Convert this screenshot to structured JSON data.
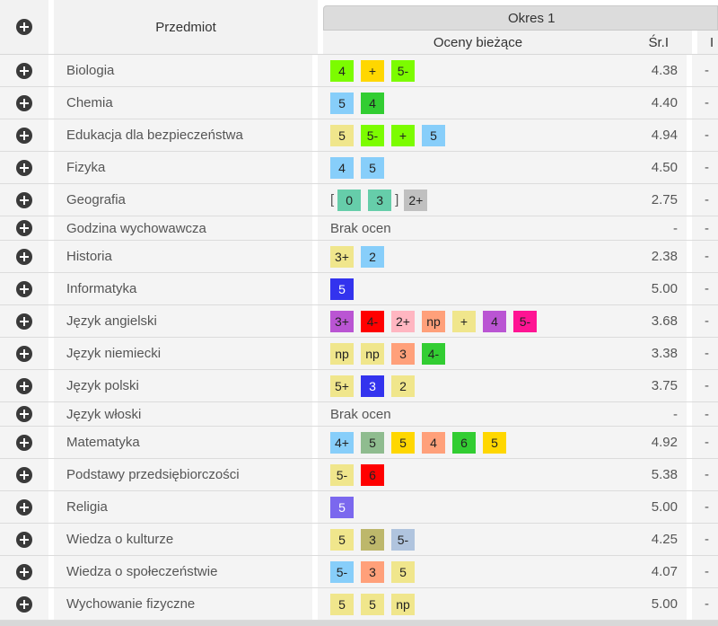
{
  "header": {
    "subject": "Przedmiot",
    "period": "Okres 1",
    "grades": "Oceny bieżące",
    "avg": "Śr.I",
    "last": "I"
  },
  "colors": {
    "lime": "#7cfc00",
    "gold": "#ffd700",
    "skyblue": "#87cefa",
    "green": "#32cd32",
    "khaki": "#f0e68c",
    "aquamarine": "#66cdaa",
    "silver": "#c0c0c0",
    "blue": "#3333ee",
    "orchid": "#ba55d3",
    "red": "#ff0000",
    "pink": "#ffb6c1",
    "salmon": "#ffa07a",
    "magenta": "#ff1493",
    "olive": "#bdb76b",
    "steel": "#b0c4de",
    "slate": "#7b68ee",
    "sage": "#8fbc8f"
  },
  "rows": [
    {
      "subject": "Biologia",
      "grades": [
        {
          "v": "4",
          "c": "#7cfc00"
        },
        {
          "v": "+",
          "c": "#ffd700"
        },
        {
          "v": "5-",
          "c": "#7cfc00"
        }
      ],
      "avg": "4.38",
      "last": "-"
    },
    {
      "subject": "Chemia",
      "grades": [
        {
          "v": "5",
          "c": "#87cefa"
        },
        {
          "v": "4",
          "c": "#32cd32"
        }
      ],
      "avg": "4.40",
      "last": "-"
    },
    {
      "subject": "Edukacja dla bezpieczeństwa",
      "grades": [
        {
          "v": "5",
          "c": "#f0e68c"
        },
        {
          "v": "5-",
          "c": "#7cfc00"
        },
        {
          "v": "+",
          "c": "#7cfc00"
        },
        {
          "v": "5",
          "c": "#87cefa"
        }
      ],
      "avg": "4.94",
      "last": "-"
    },
    {
      "subject": "Fizyka",
      "grades": [
        {
          "v": "4",
          "c": "#87cefa"
        },
        {
          "v": "5",
          "c": "#87cefa"
        }
      ],
      "avg": "4.50",
      "last": "-"
    },
    {
      "subject": "Geografia",
      "bracket": true,
      "grades": [
        {
          "v": "0",
          "c": "#66cdaa"
        },
        {
          "v": "3",
          "c": "#66cdaa"
        },
        {
          "v": "2+",
          "c": "#c0c0c0"
        }
      ],
      "avg": "2.75",
      "last": "-"
    },
    {
      "subject": "Godzina wychowawcza",
      "none": "Brak ocen",
      "grades": [],
      "avg": "-",
      "last": "-"
    },
    {
      "subject": "Historia",
      "grades": [
        {
          "v": "3+",
          "c": "#f0e68c"
        },
        {
          "v": "2",
          "c": "#87cefa"
        }
      ],
      "avg": "2.38",
      "last": "-"
    },
    {
      "subject": "Informatyka",
      "grades": [
        {
          "v": "5",
          "c": "#3333ee",
          "light": true
        }
      ],
      "avg": "5.00",
      "last": "-"
    },
    {
      "subject": "Język angielski",
      "grades": [
        {
          "v": "3+",
          "c": "#ba55d3"
        },
        {
          "v": "4-",
          "c": "#ff0000"
        },
        {
          "v": "2+",
          "c": "#ffb6c1"
        },
        {
          "v": "np",
          "c": "#ffa07a"
        },
        {
          "v": "+",
          "c": "#f0e68c"
        },
        {
          "v": "4",
          "c": "#ba55d3"
        },
        {
          "v": "5-",
          "c": "#ff1493"
        }
      ],
      "avg": "3.68",
      "last": "-"
    },
    {
      "subject": "Język niemiecki",
      "grades": [
        {
          "v": "np",
          "c": "#f0e68c"
        },
        {
          "v": "np",
          "c": "#f0e68c"
        },
        {
          "v": "3",
          "c": "#ffa07a"
        },
        {
          "v": "4-",
          "c": "#32cd32"
        }
      ],
      "avg": "3.38",
      "last": "-"
    },
    {
      "subject": "Język polski",
      "grades": [
        {
          "v": "5+",
          "c": "#f0e68c"
        },
        {
          "v": "3",
          "c": "#3333ee",
          "light": true
        },
        {
          "v": "2",
          "c": "#f0e68c"
        }
      ],
      "avg": "3.75",
      "last": "-"
    },
    {
      "subject": "Język włoski",
      "none": "Brak ocen",
      "grades": [],
      "avg": "-",
      "last": "-"
    },
    {
      "subject": "Matematyka",
      "grades": [
        {
          "v": "4+",
          "c": "#87cefa"
        },
        {
          "v": "5",
          "c": "#8fbc8f"
        },
        {
          "v": "5",
          "c": "#ffd700"
        },
        {
          "v": "4",
          "c": "#ffa07a"
        },
        {
          "v": "6",
          "c": "#32cd32"
        },
        {
          "v": "5",
          "c": "#ffd700"
        }
      ],
      "avg": "4.92",
      "last": "-"
    },
    {
      "subject": "Podstawy przedsiębiorczości",
      "grades": [
        {
          "v": "5-",
          "c": "#f0e68c"
        },
        {
          "v": "6",
          "c": "#ff0000"
        }
      ],
      "avg": "5.38",
      "last": "-"
    },
    {
      "subject": "Religia",
      "grades": [
        {
          "v": "5",
          "c": "#7b68ee",
          "light": true
        }
      ],
      "avg": "5.00",
      "last": "-"
    },
    {
      "subject": "Wiedza o kulturze",
      "grades": [
        {
          "v": "5",
          "c": "#f0e68c"
        },
        {
          "v": "3",
          "c": "#bdb76b"
        },
        {
          "v": "5-",
          "c": "#b0c4de"
        }
      ],
      "avg": "4.25",
      "last": "-"
    },
    {
      "subject": "Wiedza o społeczeństwie",
      "grades": [
        {
          "v": "5-",
          "c": "#87cefa"
        },
        {
          "v": "3",
          "c": "#ffa07a"
        },
        {
          "v": "5",
          "c": "#f0e68c"
        }
      ],
      "avg": "4.07",
      "last": "-"
    },
    {
      "subject": "Wychowanie fizyczne",
      "grades": [
        {
          "v": "5",
          "c": "#f0e68c"
        },
        {
          "v": "5",
          "c": "#f0e68c"
        },
        {
          "v": "np",
          "c": "#f0e68c"
        }
      ],
      "avg": "5.00",
      "last": "-"
    }
  ]
}
